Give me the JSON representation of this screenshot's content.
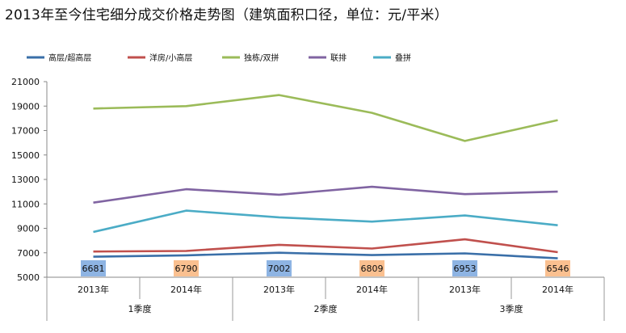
{
  "title": "2013年至今住宅细分成交价格走势图（建筑面积口径，单位：元/平米）",
  "chart_data": {
    "type": "line",
    "categories": [
      "2013年",
      "2014年",
      "2013年",
      "2014年",
      "2013年",
      "2014年"
    ],
    "groups": [
      "1季度",
      "2季度",
      "3季度"
    ],
    "ylim": [
      5000,
      21000
    ],
    "yticks": [
      5000,
      7000,
      9000,
      11000,
      13000,
      15000,
      17000,
      19000,
      21000
    ],
    "grid": false,
    "legend_position": "top",
    "series": [
      {
        "name": "高层/超高层",
        "color": "#3A6FA8",
        "values": [
          6681,
          6790,
          7002,
          6809,
          6953,
          6546
        ]
      },
      {
        "name": "洋房/小高层",
        "color": "#C0504D",
        "values": [
          7100,
          7150,
          7650,
          7350,
          8100,
          7050
        ]
      },
      {
        "name": "独栋/双拼",
        "color": "#9BBB59",
        "values": [
          18800,
          19000,
          19900,
          18450,
          16150,
          17850
        ]
      },
      {
        "name": "联排",
        "color": "#8064A2",
        "values": [
          11100,
          12200,
          11750,
          12400,
          11800,
          12000
        ]
      },
      {
        "name": "叠拼",
        "color": "#4BACC6",
        "values": [
          8700,
          10450,
          9900,
          9550,
          10050,
          9250
        ]
      }
    ],
    "data_labels": {
      "series": "高层/超高层",
      "labels": [
        "6681",
        "6790",
        "7002",
        "6809",
        "6953",
        "6546"
      ],
      "box_colors": [
        "#8EB4E3",
        "#FAC090",
        "#8EB4E3",
        "#FAC090",
        "#8EB4E3",
        "#FAC090"
      ]
    }
  }
}
